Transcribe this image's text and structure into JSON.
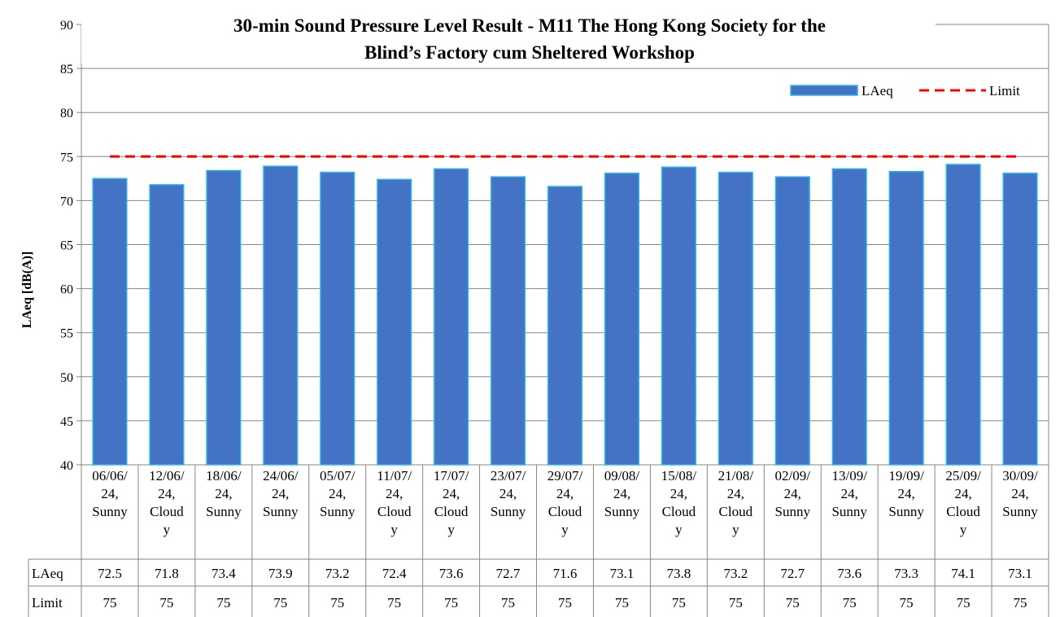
{
  "chart_data": {
    "type": "bar",
    "title_lines": [
      "30-min Sound Pressure Level Result - M11 The Hong Kong Society for the",
      "Blind’s Factory cum Sheltered Workshop"
    ],
    "ylabel": "LAeq [dB(A)]",
    "ylim": [
      40,
      90
    ],
    "yticks": [
      40,
      45,
      50,
      55,
      60,
      65,
      70,
      75,
      80,
      85,
      90
    ],
    "grid": true,
    "legend_position": "top-right",
    "categories": [
      [
        "06/06/",
        "24,",
        "Sunny"
      ],
      [
        "12/06/",
        "24,",
        "Cloud",
        "y"
      ],
      [
        "18/06/",
        "24,",
        "Sunny"
      ],
      [
        "24/06/",
        "24,",
        "Sunny"
      ],
      [
        "05/07/",
        "24,",
        "Sunny"
      ],
      [
        "11/07/",
        "24,",
        "Cloud",
        "y"
      ],
      [
        "17/07/",
        "24,",
        "Cloud",
        "y"
      ],
      [
        "23/07/",
        "24,",
        "Sunny"
      ],
      [
        "29/07/",
        "24,",
        "Cloud",
        "y"
      ],
      [
        "09/08/",
        "24,",
        "Sunny"
      ],
      [
        "15/08/",
        "24,",
        "Cloud",
        "y"
      ],
      [
        "21/08/",
        "24,",
        "Cloud",
        "y"
      ],
      [
        "02/09/",
        "24,",
        "Sunny"
      ],
      [
        "13/09/",
        "24,",
        "Sunny"
      ],
      [
        "19/09/",
        "24,",
        "Sunny"
      ],
      [
        "25/09/",
        "24,",
        "Cloud",
        "y"
      ],
      [
        "30/09/",
        "24,",
        "Sunny"
      ]
    ],
    "series": [
      {
        "name": "LAeq",
        "kind": "bar",
        "color": "#4472C4",
        "edge_color": "#29B6E8",
        "values": [
          72.5,
          71.8,
          73.4,
          73.9,
          73.2,
          72.4,
          73.6,
          72.7,
          71.6,
          73.1,
          73.8,
          73.2,
          72.7,
          73.6,
          73.3,
          74.1,
          73.1
        ],
        "table_values": [
          "72.5",
          "71.8",
          "73.4",
          "73.9",
          "73.2",
          "72.4",
          "73.6",
          "72.7",
          "71.6",
          "73.1",
          "73.8",
          "73.2",
          "72.7",
          "73.6",
          "73.3",
          "74.1",
          "73.1"
        ]
      },
      {
        "name": "Limit",
        "kind": "dashed-line",
        "color": "#FF0000",
        "values": [
          75,
          75,
          75,
          75,
          75,
          75,
          75,
          75,
          75,
          75,
          75,
          75,
          75,
          75,
          75,
          75,
          75
        ],
        "table_values": [
          "75",
          "75",
          "75",
          "75",
          "75",
          "75",
          "75",
          "75",
          "75",
          "75",
          "75",
          "75",
          "75",
          "75",
          "75",
          "75",
          "75"
        ]
      }
    ]
  }
}
